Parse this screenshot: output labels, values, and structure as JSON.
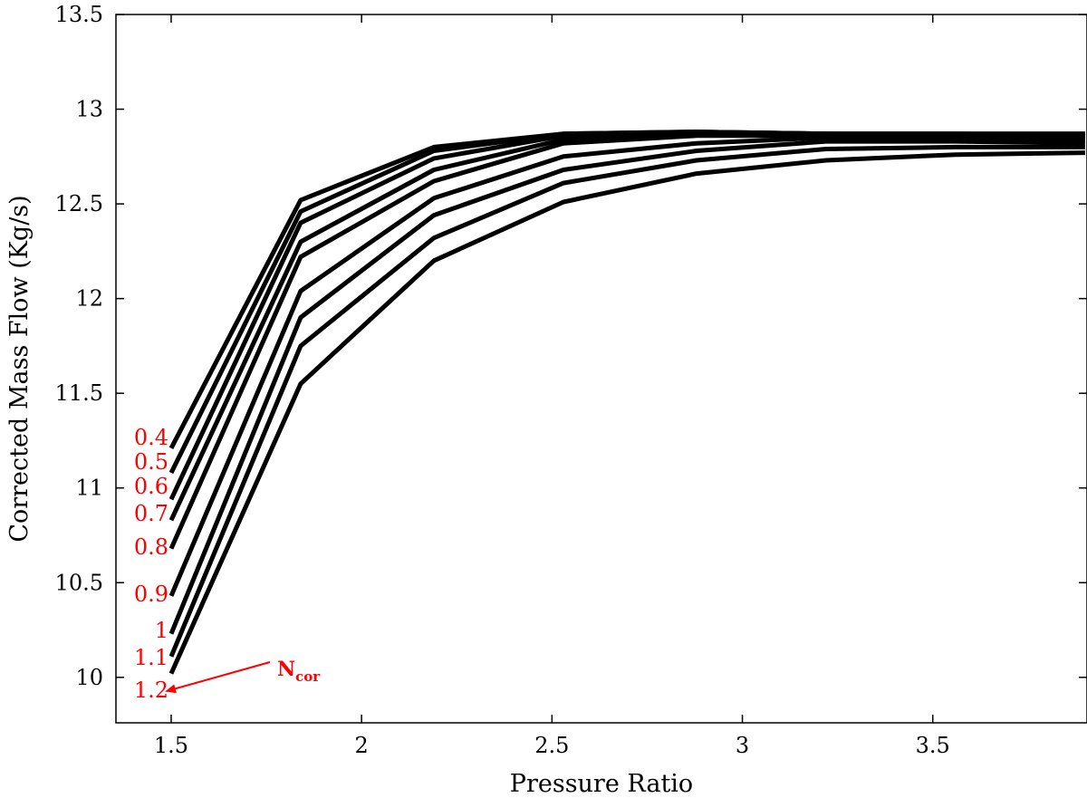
{
  "chart_data": {
    "type": "line",
    "title": "",
    "xlabel": "Pressure Ratio",
    "ylabel": "Corrected Mass Flow (Kg/s)",
    "xlim": [
      1.355,
      3.905
    ],
    "ylim": [
      9.76,
      13.5
    ],
    "xticks": [
      1.5,
      2,
      2.5,
      3,
      3.5
    ],
    "xtick_labels": [
      "1.5",
      "2",
      "2.5",
      "3",
      "3.5"
    ],
    "yticks": [
      10,
      10.5,
      11,
      11.5,
      12,
      12.5,
      13,
      13.5
    ],
    "ytick_labels": [
      "10",
      "10.5",
      "11",
      "11.5",
      "12",
      "12.5",
      "13",
      "13.5"
    ],
    "grid": false,
    "x": [
      1.5,
      1.84,
      2.19,
      2.53,
      2.88,
      3.22,
      3.56,
      3.9
    ],
    "series": [
      {
        "name": "0.4",
        "values": [
          11.21,
          12.52,
          12.8,
          12.87,
          12.88,
          12.87,
          12.87,
          12.87
        ]
      },
      {
        "name": "0.5",
        "values": [
          11.08,
          12.46,
          12.78,
          12.87,
          12.88,
          12.87,
          12.87,
          12.87
        ]
      },
      {
        "name": "0.6",
        "values": [
          10.94,
          12.4,
          12.74,
          12.86,
          12.88,
          12.87,
          12.87,
          12.86
        ]
      },
      {
        "name": "0.7",
        "values": [
          10.83,
          12.3,
          12.68,
          12.84,
          12.87,
          12.87,
          12.86,
          12.86
        ]
      },
      {
        "name": "0.8",
        "values": [
          10.68,
          12.22,
          12.62,
          12.82,
          12.86,
          12.86,
          12.86,
          12.85
        ]
      },
      {
        "name": "0.9",
        "values": [
          10.43,
          12.04,
          12.53,
          12.75,
          12.82,
          12.85,
          12.85,
          12.84
        ]
      },
      {
        "name": "1",
        "values": [
          10.23,
          11.9,
          12.44,
          12.68,
          12.78,
          12.83,
          12.83,
          12.82
        ]
      },
      {
        "name": "1.1",
        "values": [
          10.11,
          11.75,
          12.32,
          12.61,
          12.73,
          12.79,
          12.8,
          12.8
        ]
      },
      {
        "name": "1.2",
        "values": [
          10.02,
          11.55,
          12.2,
          12.51,
          12.66,
          12.73,
          12.76,
          12.77
        ]
      }
    ],
    "annotation": {
      "text": "N",
      "subscript": "cor",
      "color": "#ff0000"
    },
    "line_color": "#000000",
    "label_color": "#ff0000"
  }
}
